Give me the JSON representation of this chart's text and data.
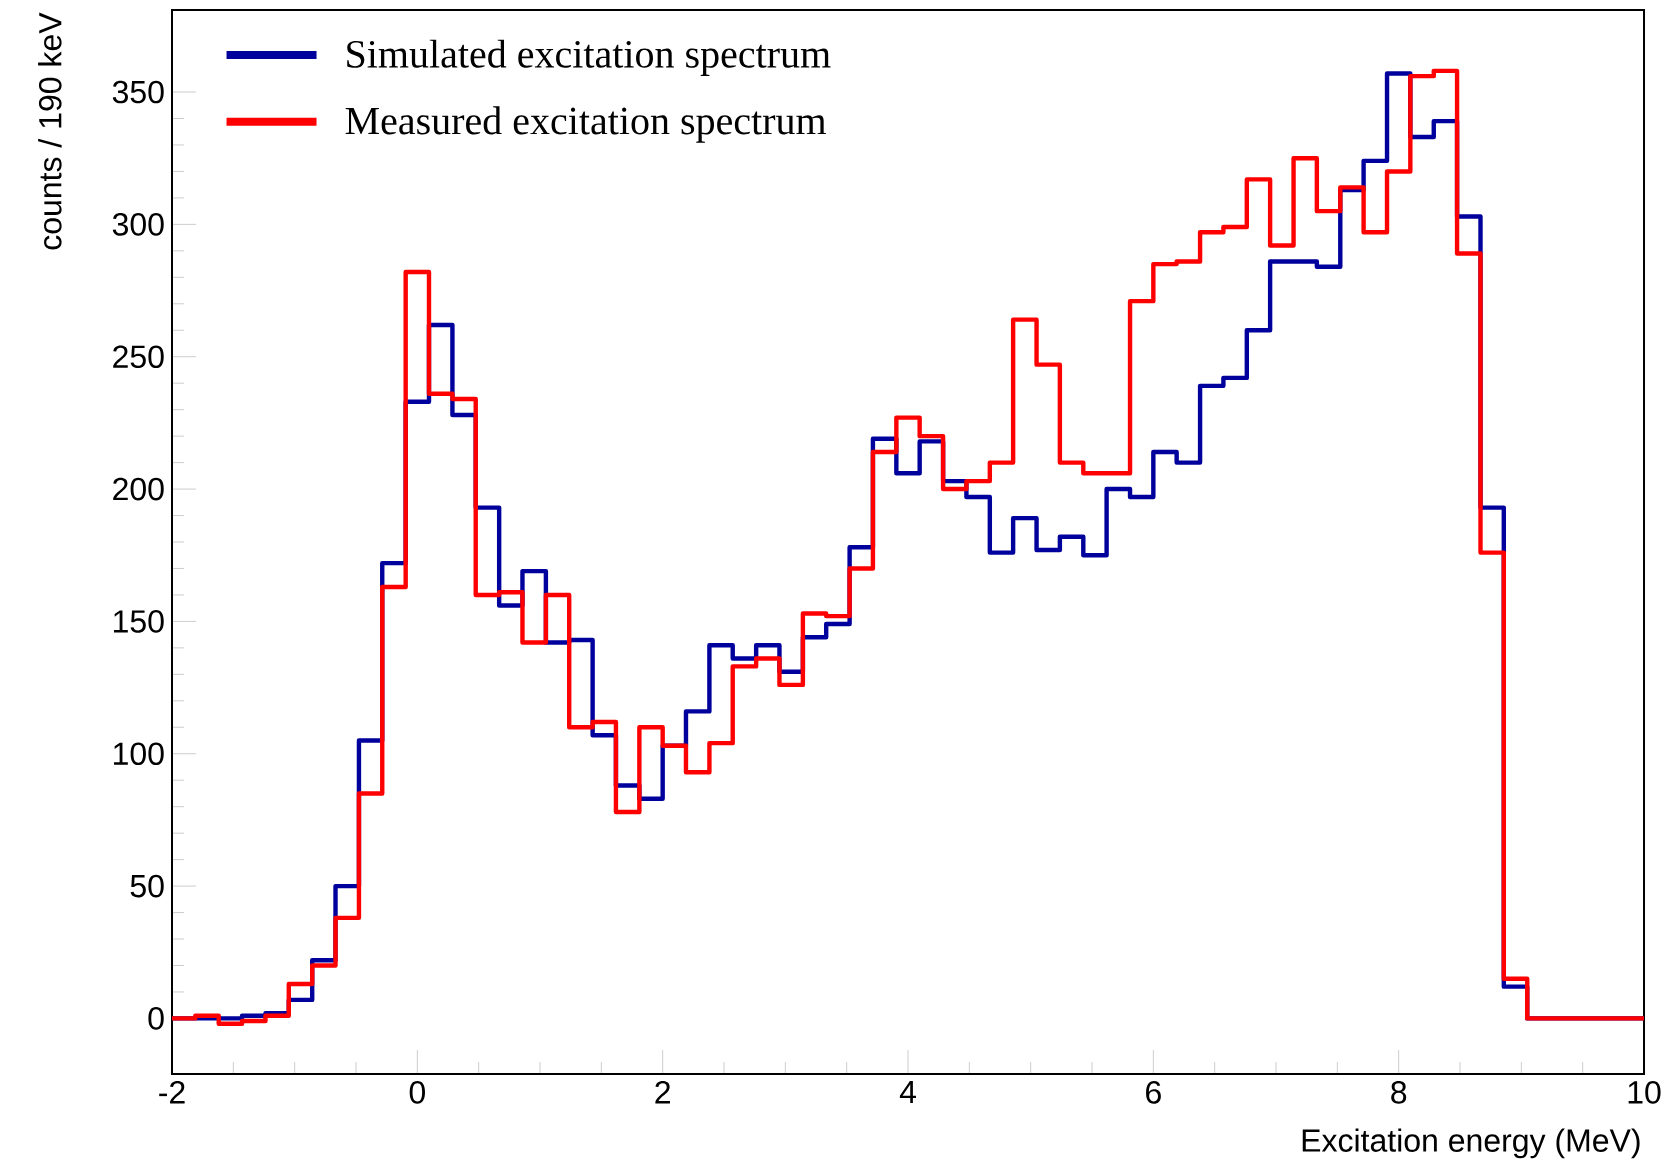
{
  "chart_data": {
    "type": "histogram",
    "xlabel": "Excitation energy (MeV)",
    "ylabel": "counts / 190 keV",
    "bins": [
      -2,
      -1.81,
      -1.619,
      -1.429,
      -1.238,
      -1.048,
      -0.857,
      -0.667,
      -0.476,
      -0.286,
      -0.095,
      0.095,
      0.286,
      0.476,
      0.667,
      0.857,
      1.048,
      1.238,
      1.429,
      1.619,
      1.81,
      2,
      2.19,
      2.381,
      2.571,
      2.762,
      2.952,
      3.143,
      3.333,
      3.524,
      3.714,
      3.905,
      4.095,
      4.286,
      4.476,
      4.667,
      4.857,
      5.048,
      5.238,
      5.429,
      5.619,
      5.81,
      6,
      6.19,
      6.381,
      6.571,
      6.762,
      6.952,
      7.143,
      7.333,
      7.524,
      7.714,
      7.905,
      8.095,
      8.286,
      8.476,
      8.667,
      8.857,
      9.048,
      9.238,
      9.429,
      9.619,
      9.81,
      10
    ],
    "series": [
      {
        "name": "Simulated excitation spectrum",
        "color": "#00009c",
        "values": [
          0,
          0,
          0,
          1,
          2,
          7,
          22,
          50,
          105,
          172,
          233,
          262,
          228,
          193,
          156,
          169,
          142,
          143,
          107,
          88,
          83,
          103,
          116,
          141,
          136,
          141,
          131,
          144,
          149,
          178,
          219,
          206,
          218,
          203,
          197,
          176,
          189,
          177,
          182,
          175,
          200,
          197,
          214,
          210,
          239,
          242,
          260,
          286,
          286,
          284,
          313,
          324,
          357,
          333,
          339,
          303,
          193,
          12,
          0,
          0,
          0,
          0,
          0
        ]
      },
      {
        "name": "Measured excitation spectrum",
        "color": "#ff0000",
        "values": [
          0,
          1,
          -2,
          -1,
          1,
          13,
          20,
          38,
          85,
          163,
          282,
          236,
          234,
          160,
          161,
          142,
          160,
          110,
          112,
          78,
          110,
          103,
          93,
          104,
          133,
          136,
          126,
          153,
          152,
          170,
          214,
          227,
          220,
          200,
          203,
          210,
          264,
          247,
          210,
          206,
          206,
          271,
          285,
          286,
          297,
          299,
          317,
          292,
          325,
          305,
          314,
          297,
          320,
          356,
          358,
          289,
          176,
          15,
          0,
          0,
          0,
          0,
          0
        ]
      }
    ],
    "xlim": [
      -2,
      10
    ],
    "ylim": [
      -21,
      381
    ],
    "xticks": [
      -2,
      0,
      2,
      4,
      6,
      8,
      10
    ],
    "yticks": [
      0,
      50,
      100,
      150,
      200,
      250,
      300,
      350
    ],
    "legend": "top left"
  }
}
